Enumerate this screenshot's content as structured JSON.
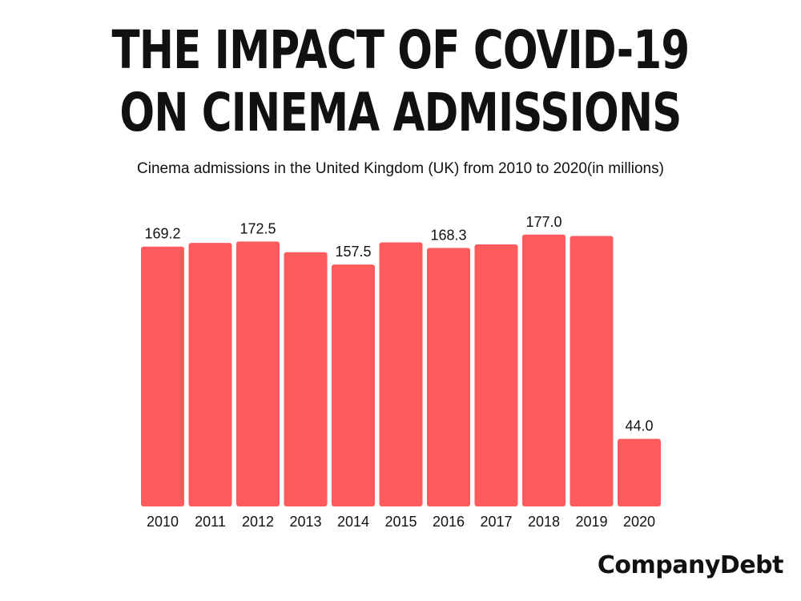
{
  "header": {
    "title_line1": "THE IMPACT OF COVID-19",
    "title_line2": "ON CINEMA ADMISSIONS",
    "subtitle": "Cinema admissions in the United Kingdom (UK) from 2010 to 2020(in millions)"
  },
  "brand": {
    "name": "CompanyDebt"
  },
  "colors": {
    "bar": "#ff5a5c",
    "text": "#111111"
  },
  "chart_data": {
    "type": "bar",
    "title": "THE IMPACT OF COVID-19 ON CINEMA ADMISSIONS",
    "subtitle": "Cinema admissions in the United Kingdom (UK) from 2010 to 2020(in millions)",
    "xlabel": "",
    "ylabel": "",
    "categories": [
      "2010",
      "2011",
      "2012",
      "2013",
      "2014",
      "2015",
      "2016",
      "2017",
      "2018",
      "2019",
      "2020"
    ],
    "values": [
      169.2,
      171.6,
      172.5,
      165.5,
      157.5,
      171.9,
      168.3,
      170.6,
      177.0,
      176.1,
      44.0
    ],
    "data_labels": [
      "169.2",
      "",
      "172.5",
      "",
      "157.5",
      "",
      "168.3",
      "",
      "177.0",
      "",
      "44.0"
    ],
    "ylim": [
      0,
      180
    ],
    "grid": false,
    "legend": "none",
    "y_axis_visible": false
  }
}
